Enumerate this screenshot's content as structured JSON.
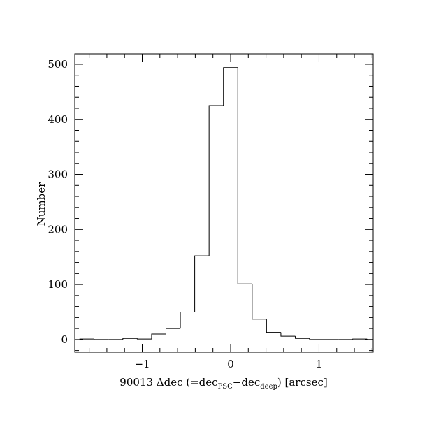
{
  "chart_data": {
    "type": "histogram",
    "xlabel": [
      "90013 Δdec (=dec",
      "PSC",
      "−dec",
      "deep",
      ") [arcsec]"
    ],
    "ylabel": "Number",
    "bins": [
      -1.70625,
      -1.54375,
      -1.38125,
      -1.21875,
      -1.05625,
      -0.89375,
      -0.73125,
      -0.56875,
      -0.40625,
      -0.24375,
      -0.08125,
      0.08125,
      0.24375,
      0.40625,
      0.56875,
      0.73125,
      0.89375,
      1.05625,
      1.21875,
      1.38125,
      1.54375,
      1.70625
    ],
    "values": [
      1,
      0,
      0,
      2,
      1,
      10,
      20,
      50,
      152,
      425,
      494,
      101,
      37,
      13,
      6,
      2,
      0,
      0,
      0,
      1,
      0
    ],
    "color": "#000000",
    "xlim": [
      -1.763,
      1.613
    ],
    "ylim": [
      -23,
      519
    ],
    "xticks": [
      {
        "value": -1,
        "label": "−1"
      },
      0,
      1
    ],
    "xminorticks": [
      -1.6,
      -1.4,
      -1.2,
      -0.8,
      -0.6,
      -0.4,
      -0.2,
      0.2,
      0.4,
      0.6,
      0.8,
      1.2,
      1.4,
      1.6
    ],
    "yticks": [
      0,
      100,
      200,
      300,
      400,
      500
    ],
    "yminorticks": [
      -20,
      20,
      40,
      60,
      80,
      120,
      140,
      160,
      180,
      220,
      240,
      260,
      280,
      320,
      340,
      360,
      380,
      420,
      440,
      460,
      480
    ]
  }
}
